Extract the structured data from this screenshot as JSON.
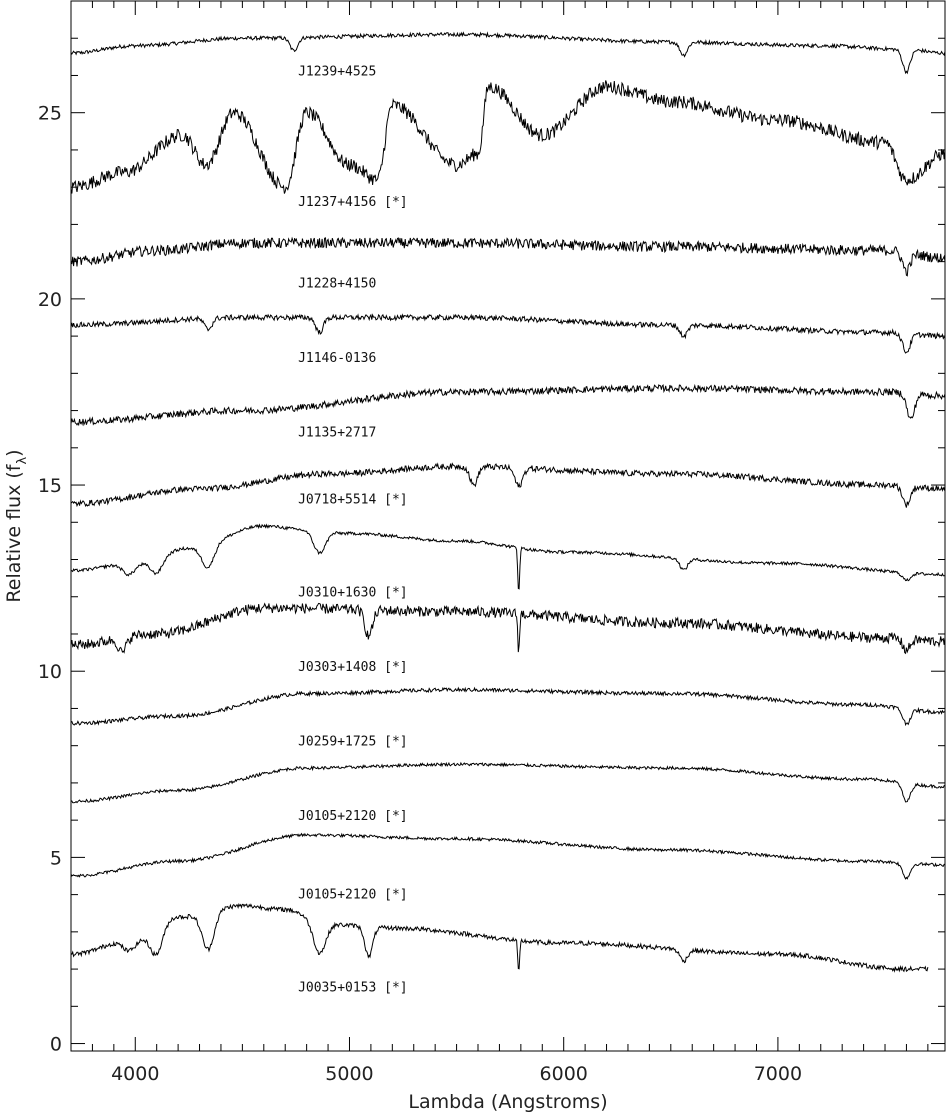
{
  "chart_data": {
    "type": "line",
    "xlabel": "Lambda (Angstroms)",
    "ylabel": "Relative flux (f",
    "ylabel_sub": "λ",
    "ylabel_close": ")",
    "xlim": [
      3700,
      7780
    ],
    "ylim": [
      -0.2,
      28
    ],
    "xticks": [
      4000,
      5000,
      6000,
      7000
    ],
    "yticks": [
      0,
      5,
      10,
      15,
      20,
      25
    ],
    "grid": false,
    "series": [
      {
        "name": "J1239+4525",
        "offset": 26.6,
        "base": 26.6,
        "shape": "flat",
        "noise": 0.05,
        "anchors": [
          [
            3700,
            26.6
          ],
          [
            4000,
            26.8
          ],
          [
            4500,
            27.0
          ],
          [
            5500,
            27.1
          ],
          [
            6500,
            26.9
          ],
          [
            7200,
            26.8
          ],
          [
            7600,
            26.7
          ],
          [
            7780,
            26.6
          ]
        ],
        "dips": [
          [
            4740,
            -0.35
          ],
          [
            6560,
            -0.35
          ],
          [
            7600,
            -0.6
          ]
        ]
      },
      {
        "name": "J1237+4156 [*]",
        "offset": 23.0,
        "shape": "bands",
        "noise": 0.18,
        "anchors": [
          [
            3700,
            23.0
          ],
          [
            3950,
            23.4
          ],
          [
            4220,
            24.4
          ],
          [
            4330,
            23.6
          ],
          [
            4460,
            25.0
          ],
          [
            4700,
            23.0
          ],
          [
            4800,
            25.0
          ],
          [
            5000,
            23.6
          ],
          [
            5130,
            23.2
          ],
          [
            5200,
            25.2
          ],
          [
            5500,
            23.6
          ],
          [
            5600,
            23.9
          ],
          [
            5650,
            25.7
          ],
          [
            5900,
            24.4
          ],
          [
            6200,
            25.7
          ],
          [
            6500,
            25.3
          ],
          [
            7000,
            24.8
          ],
          [
            7500,
            24.2
          ],
          [
            7600,
            23.2
          ],
          [
            7780,
            23.9
          ]
        ],
        "dips": []
      },
      {
        "name": "J1228+4150",
        "offset": 21.0,
        "shape": "flat",
        "noise": 0.14,
        "anchors": [
          [
            3700,
            21.0
          ],
          [
            4100,
            21.3
          ],
          [
            4500,
            21.5
          ],
          [
            5500,
            21.5
          ],
          [
            6500,
            21.4
          ],
          [
            7500,
            21.3
          ],
          [
            7780,
            21.1
          ]
        ],
        "dips": [
          [
            7600,
            -0.5
          ]
        ]
      },
      {
        "name": "J1146-0136",
        "offset": 19.3,
        "shape": "flat",
        "noise": 0.07,
        "anchors": [
          [
            3700,
            19.3
          ],
          [
            4500,
            19.5
          ],
          [
            5500,
            19.5
          ],
          [
            6500,
            19.3
          ],
          [
            7500,
            19.1
          ],
          [
            7780,
            19.0
          ]
        ],
        "dips": [
          [
            4340,
            -0.3
          ],
          [
            4860,
            -0.4
          ],
          [
            6560,
            -0.3
          ],
          [
            7600,
            -0.5
          ]
        ]
      },
      {
        "name": "J1135+2717",
        "offset": 16.7,
        "shape": "flat",
        "noise": 0.09,
        "anchors": [
          [
            3700,
            16.7
          ],
          [
            4500,
            17.0
          ],
          [
            5500,
            17.5
          ],
          [
            6500,
            17.6
          ],
          [
            7500,
            17.5
          ],
          [
            7780,
            17.4
          ]
        ],
        "dips": [
          [
            7620,
            -0.7
          ]
        ]
      },
      {
        "name": "J0718+5514 [*]",
        "offset": 14.5,
        "shape": "flat",
        "noise": 0.08,
        "anchors": [
          [
            3700,
            14.5
          ],
          [
            4300,
            14.9
          ],
          [
            4900,
            15.3
          ],
          [
            5500,
            15.5
          ],
          [
            6500,
            15.3
          ],
          [
            7500,
            15.0
          ],
          [
            7780,
            14.9
          ]
        ],
        "dips": [
          [
            5580,
            -0.5
          ],
          [
            5790,
            -0.5
          ],
          [
            7600,
            -0.5
          ]
        ]
      },
      {
        "name": "J0310+1630 [*]",
        "offset": 12.7,
        "shape": "wd",
        "noise": 0.04,
        "anchors": [
          [
            3700,
            12.7
          ],
          [
            4000,
            12.9
          ],
          [
            4250,
            13.3
          ],
          [
            4600,
            13.9
          ],
          [
            4800,
            13.8
          ],
          [
            5000,
            13.7
          ],
          [
            5500,
            13.5
          ],
          [
            6000,
            13.2
          ],
          [
            7000,
            12.9
          ],
          [
            7780,
            12.6
          ]
        ],
        "dips": [
          [
            3970,
            -0.3
          ],
          [
            4100,
            -0.4
          ],
          [
            4340,
            -0.6
          ],
          [
            4860,
            -0.6
          ],
          [
            5790,
            -1.2
          ],
          [
            6560,
            -0.3
          ],
          [
            7600,
            -0.2
          ]
        ]
      },
      {
        "name": "J0303+1408 [*]",
        "offset": 10.7,
        "shape": "flat",
        "noise": 0.14,
        "anchors": [
          [
            3700,
            10.7
          ],
          [
            4100,
            11.0
          ],
          [
            4600,
            11.7
          ],
          [
            5500,
            11.6
          ],
          [
            6500,
            11.3
          ],
          [
            7500,
            10.9
          ],
          [
            7780,
            10.8
          ]
        ],
        "dips": [
          [
            3940,
            -0.4
          ],
          [
            5090,
            -0.7
          ],
          [
            5790,
            -1.0
          ],
          [
            7600,
            -0.3
          ]
        ]
      },
      {
        "name": "J0259+1725 [*]",
        "offset": 8.6,
        "shape": "flat",
        "noise": 0.05,
        "anchors": [
          [
            3700,
            8.6
          ],
          [
            4200,
            8.8
          ],
          [
            4800,
            9.4
          ],
          [
            5500,
            9.5
          ],
          [
            6500,
            9.4
          ],
          [
            7400,
            9.1
          ],
          [
            7780,
            8.9
          ]
        ],
        "dips": [
          [
            7600,
            -0.4
          ]
        ]
      },
      {
        "name": "J0105+2120 [*]",
        "offset": 6.5,
        "shape": "flat",
        "noise": 0.04,
        "anchors": [
          [
            3700,
            6.5
          ],
          [
            4200,
            6.8
          ],
          [
            4800,
            7.4
          ],
          [
            5500,
            7.5
          ],
          [
            6500,
            7.4
          ],
          [
            7400,
            7.1
          ],
          [
            7780,
            6.9
          ]
        ],
        "dips": [
          [
            7600,
            -0.5
          ]
        ]
      },
      {
        "name": "J0105+2120 [*]",
        "offset": 4.5,
        "shape": "flat",
        "noise": 0.04,
        "anchors": [
          [
            3700,
            4.5
          ],
          [
            4200,
            4.9
          ],
          [
            4800,
            5.6
          ],
          [
            5500,
            5.5
          ],
          [
            6500,
            5.2
          ],
          [
            7400,
            4.9
          ],
          [
            7780,
            4.8
          ]
        ],
        "dips": [
          [
            7600,
            -0.4
          ]
        ]
      },
      {
        "name": "J0035+0153 [*]",
        "offset": 2.4,
        "shape": "wd",
        "noise": 0.06,
        "anchors": [
          [
            3700,
            2.4
          ],
          [
            4000,
            2.8
          ],
          [
            4200,
            3.4
          ],
          [
            4500,
            3.7
          ],
          [
            4700,
            3.6
          ],
          [
            4900,
            3.2
          ],
          [
            5200,
            3.1
          ],
          [
            6000,
            2.7
          ],
          [
            7000,
            2.4
          ],
          [
            7600,
            2.0
          ],
          [
            7700,
            2.0
          ]
        ],
        "dips": [
          [
            3970,
            -0.3
          ],
          [
            4100,
            -0.7
          ],
          [
            4340,
            -1.0
          ],
          [
            4860,
            -0.8
          ],
          [
            5090,
            -0.8
          ],
          [
            5790,
            -0.9
          ],
          [
            6560,
            -0.3
          ]
        ]
      }
    ],
    "label_y": [
      26.0,
      22.5,
      20.3,
      18.3,
      16.3,
      14.5,
      12.0,
      10.0,
      8.0,
      6.0,
      3.9,
      1.4
    ],
    "label_x": 4760
  }
}
